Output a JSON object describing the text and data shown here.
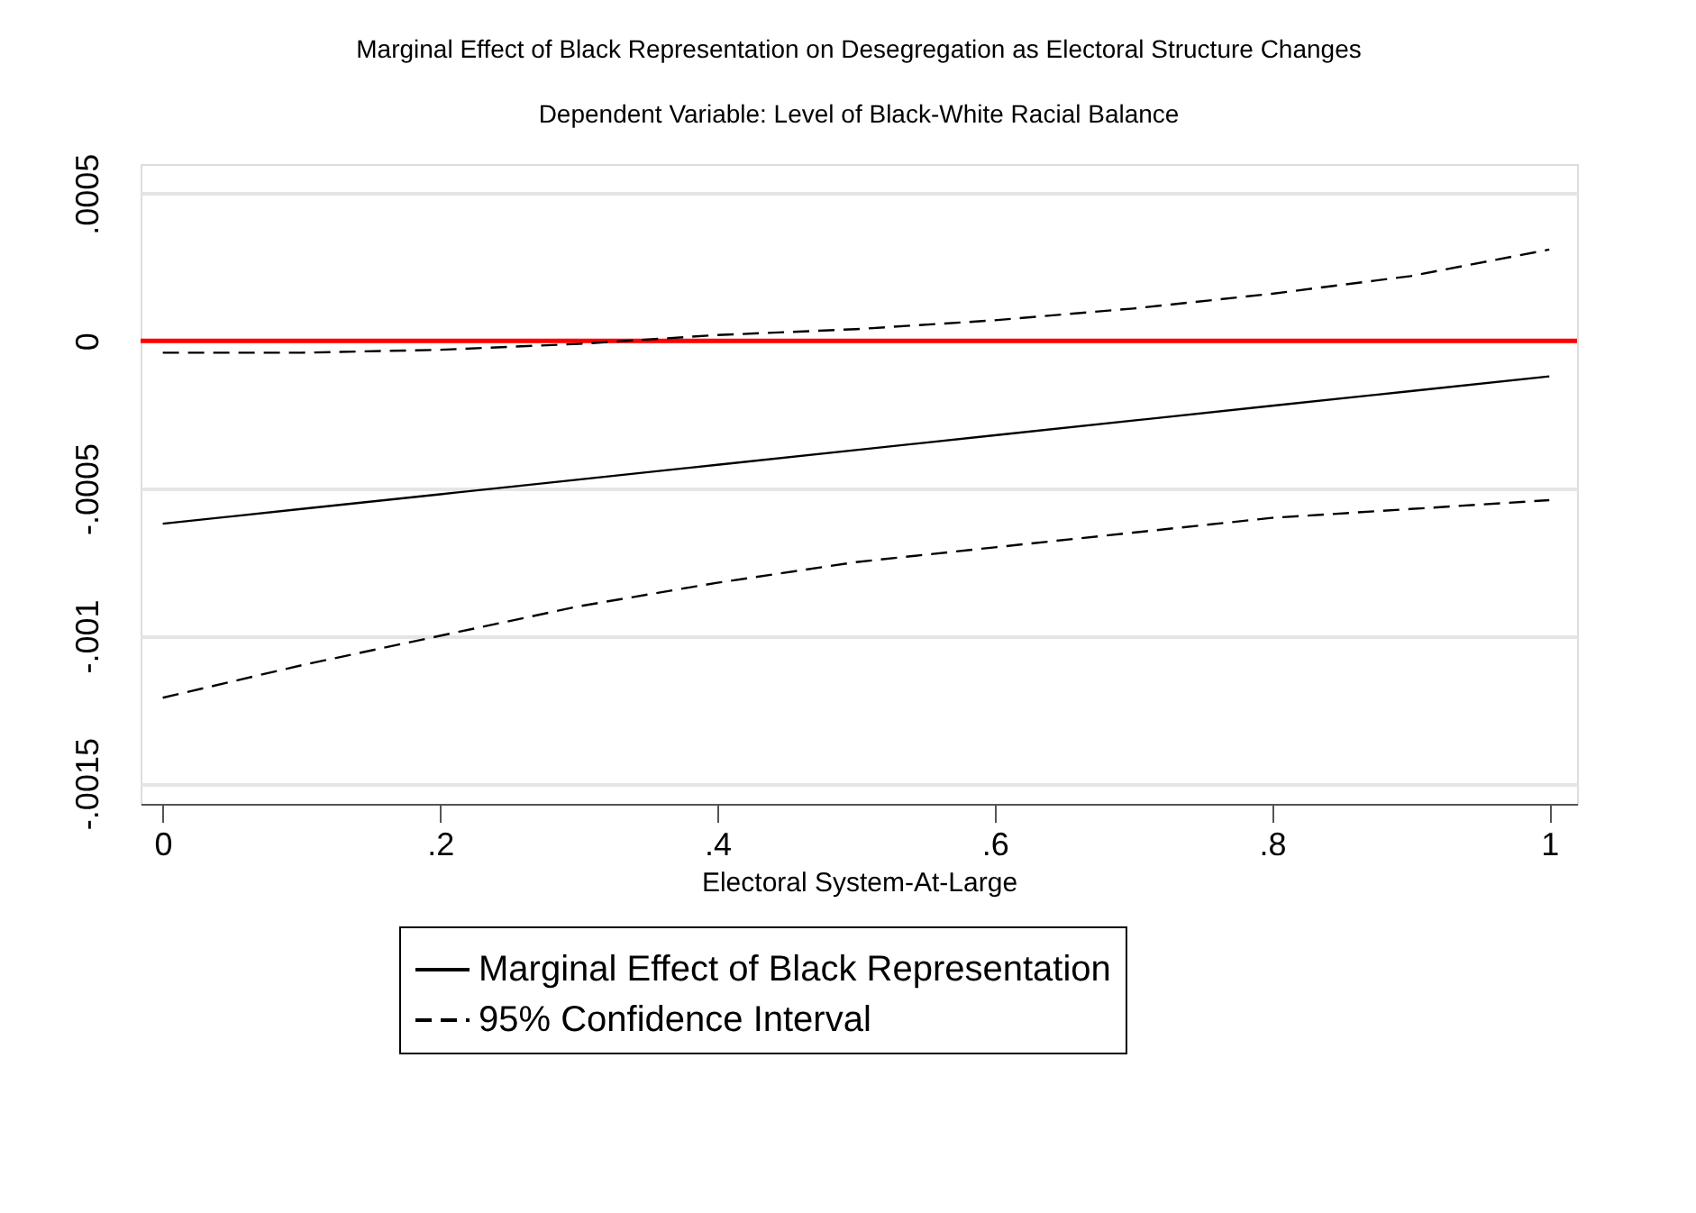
{
  "chart_data": {
    "type": "line",
    "title": "Marginal Effect of Black Representation on Desegregation as Electoral Structure Changes",
    "subtitle": "Dependent Variable: Level of Black-White Racial Balance",
    "xlabel": "Electoral System-At-Large",
    "x": [
      0,
      0.1,
      0.2,
      0.3,
      0.4,
      0.5,
      0.6,
      0.7,
      0.8,
      0.9,
      1
    ],
    "series": [
      {
        "name": "Marginal Effect of Black Representation",
        "color": "#000000",
        "line_style": "solid",
        "values": [
          -0.00062,
          -0.00057,
          -0.00052,
          -0.00047,
          -0.00042,
          -0.00037,
          -0.00032,
          -0.00027,
          -0.00022,
          -0.00017,
          -0.00012
        ]
      },
      {
        "name": "95% Confidence Interval",
        "color": "#000000",
        "line_style": "dashed",
        "values": [
          -4e-05,
          -4e-05,
          -3e-05,
          -1e-05,
          2e-05,
          4e-05,
          7e-05,
          0.00011,
          0.00016,
          0.00022,
          0.00031
        ]
      },
      {
        "color": "#000000",
        "line_style": "dashed",
        "values": [
          -0.00121,
          -0.0011,
          -0.001,
          -0.0009,
          -0.00082,
          -0.00075,
          -0.0007,
          -0.00065,
          -0.0006,
          -0.00057,
          -0.00054
        ]
      }
    ],
    "xlim": [
      -0.016,
      1.02
    ],
    "xticks": [
      0,
      {
        "value": 0.2,
        "label": ".2"
      },
      {
        "value": 0.4,
        "label": ".4"
      },
      {
        "value": 0.6,
        "label": ".6"
      },
      {
        "value": 0.8,
        "label": ".8"
      },
      1
    ],
    "ylim": [
      -0.00157,
      0.0006
    ],
    "yticks": [
      {
        "value": -0.0015,
        "label": "-.0015"
      },
      {
        "value": -0.001,
        "label": "-.001"
      },
      {
        "value": -0.0005,
        "label": "-.0005"
      },
      0,
      {
        "value": 0.0005,
        "label": ".0005"
      }
    ],
    "ref_lines": [
      {
        "axis": "y",
        "value": 0,
        "color": "#ff0000"
      }
    ],
    "grid": "y",
    "legend": "bottom"
  }
}
